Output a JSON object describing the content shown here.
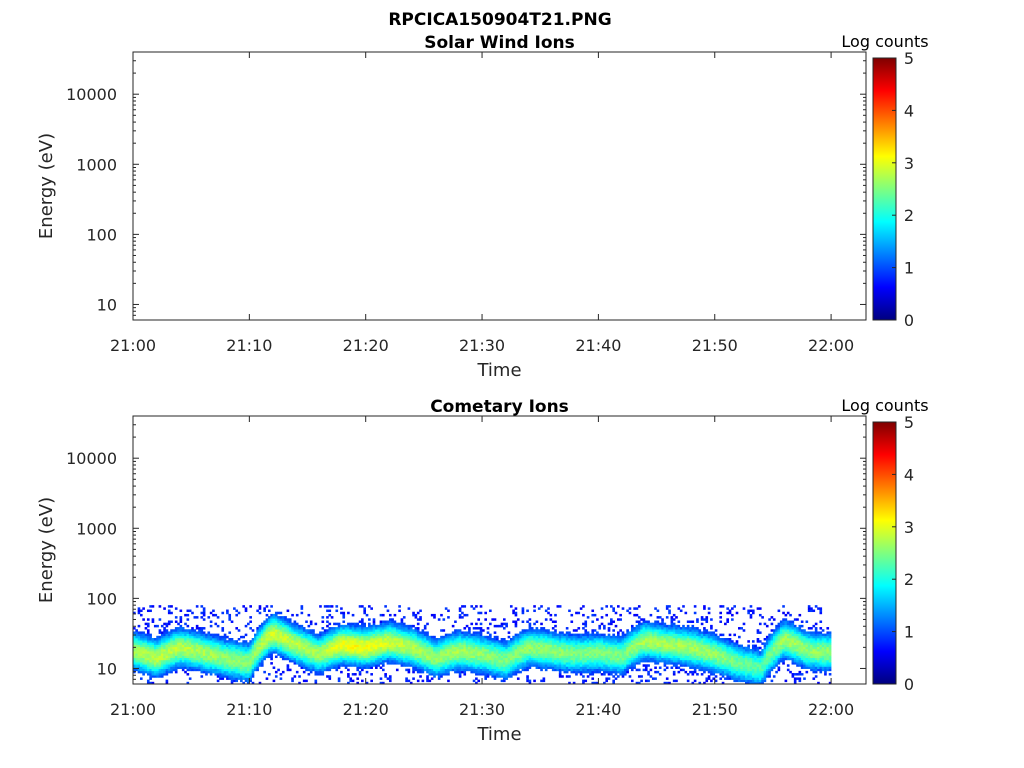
{
  "figure": {
    "suptitle": "RPCICA150904T21.PNG"
  },
  "colormap_stops": [
    "#00007f",
    "#0000ff",
    "#007fff",
    "#00ffff",
    "#7fff7f",
    "#ffff00",
    "#ff7f00",
    "#ff0000",
    "#7f0000"
  ],
  "chart_data": [
    {
      "type": "heatmap",
      "title": "Solar Wind Ions",
      "xlabel": "Time",
      "ylabel": "Energy (eV)",
      "x_ticks": [
        "21:00",
        "21:10",
        "21:20",
        "21:30",
        "21:40",
        "21:50",
        "22:00"
      ],
      "x_range": [
        "21:00",
        "22:03"
      ],
      "y_scale": "log",
      "y_ticks": [
        10,
        100,
        1000,
        10000
      ],
      "y_tick_labels": [
        "10",
        "100",
        "1000",
        "10000"
      ],
      "y_range": [
        6,
        40000
      ],
      "colorbar": {
        "label": "Log counts",
        "range": [
          0,
          5
        ],
        "ticks": [
          "0",
          "1",
          "2",
          "3",
          "4",
          "5"
        ]
      },
      "signal": []
    },
    {
      "type": "heatmap",
      "title": "Cometary Ions",
      "xlabel": "Time",
      "ylabel": "Energy (eV)",
      "x_ticks": [
        "21:00",
        "21:10",
        "21:20",
        "21:30",
        "21:40",
        "21:50",
        "22:00"
      ],
      "x_range": [
        "21:00",
        "22:03"
      ],
      "y_scale": "log",
      "y_ticks": [
        10,
        100,
        1000,
        10000
      ],
      "y_tick_labels": [
        "10",
        "100",
        "1000",
        "10000"
      ],
      "y_range": [
        6,
        40000
      ],
      "colorbar": {
        "label": "Log counts",
        "range": [
          0,
          5
        ],
        "ticks": [
          "0",
          "1",
          "2",
          "3",
          "4",
          "5"
        ]
      },
      "data_end": "22:00",
      "signal": [
        {
          "time": "21:00",
          "peak_energy_ev": 18,
          "peak_log_counts": 2.7,
          "noise_upper_energy_ev": 80
        },
        {
          "time": "21:02",
          "peak_energy_ev": 14,
          "peak_log_counts": 2.8,
          "noise_upper_energy_ev": 80
        },
        {
          "time": "21:04",
          "peak_energy_ev": 20,
          "peak_log_counts": 2.8,
          "noise_upper_energy_ev": 80
        },
        {
          "time": "21:06",
          "peak_energy_ev": 17,
          "peak_log_counts": 2.7,
          "noise_upper_energy_ev": 80
        },
        {
          "time": "21:08",
          "peak_energy_ev": 14,
          "peak_log_counts": 2.6,
          "noise_upper_energy_ev": 80
        },
        {
          "time": "21:10",
          "peak_energy_ev": 12,
          "peak_log_counts": 2.6,
          "noise_upper_energy_ev": 80
        },
        {
          "time": "21:12",
          "peak_energy_ev": 32,
          "peak_log_counts": 2.9,
          "noise_upper_energy_ev": 80
        },
        {
          "time": "21:14",
          "peak_energy_ev": 22,
          "peak_log_counts": 2.8,
          "noise_upper_energy_ev": 80
        },
        {
          "time": "21:16",
          "peak_energy_ev": 16,
          "peak_log_counts": 2.7,
          "noise_upper_energy_ev": 80
        },
        {
          "time": "21:18",
          "peak_energy_ev": 22,
          "peak_log_counts": 3.1,
          "noise_upper_energy_ev": 80
        },
        {
          "time": "21:20",
          "peak_energy_ev": 20,
          "peak_log_counts": 3.1,
          "noise_upper_energy_ev": 80
        },
        {
          "time": "21:22",
          "peak_energy_ev": 24,
          "peak_log_counts": 2.9,
          "noise_upper_energy_ev": 80
        },
        {
          "time": "21:24",
          "peak_energy_ev": 20,
          "peak_log_counts": 2.8,
          "noise_upper_energy_ev": 80
        },
        {
          "time": "21:26",
          "peak_energy_ev": 14,
          "peak_log_counts": 2.6,
          "noise_upper_energy_ev": 80
        },
        {
          "time": "21:28",
          "peak_energy_ev": 18,
          "peak_log_counts": 2.7,
          "noise_upper_energy_ev": 80
        },
        {
          "time": "21:30",
          "peak_energy_ev": 16,
          "peak_log_counts": 2.6,
          "noise_upper_energy_ev": 80
        },
        {
          "time": "21:32",
          "peak_energy_ev": 13,
          "peak_log_counts": 2.5,
          "noise_upper_energy_ev": 80
        },
        {
          "time": "21:34",
          "peak_energy_ev": 20,
          "peak_log_counts": 2.6,
          "noise_upper_energy_ev": 80
        },
        {
          "time": "21:36",
          "peak_energy_ev": 18,
          "peak_log_counts": 2.6,
          "noise_upper_energy_ev": 80
        },
        {
          "time": "21:38",
          "peak_energy_ev": 16,
          "peak_log_counts": 2.5,
          "noise_upper_energy_ev": 80
        },
        {
          "time": "21:40",
          "peak_energy_ev": 17,
          "peak_log_counts": 2.5,
          "noise_upper_energy_ev": 80
        },
        {
          "time": "21:42",
          "peak_energy_ev": 15,
          "peak_log_counts": 2.5,
          "noise_upper_energy_ev": 80
        },
        {
          "time": "21:44",
          "peak_energy_ev": 25,
          "peak_log_counts": 2.7,
          "noise_upper_energy_ev": 80
        },
        {
          "time": "21:46",
          "peak_energy_ev": 22,
          "peak_log_counts": 2.7,
          "noise_upper_energy_ev": 80
        },
        {
          "time": "21:48",
          "peak_energy_ev": 20,
          "peak_log_counts": 2.7,
          "noise_upper_energy_ev": 80
        },
        {
          "time": "21:50",
          "peak_energy_ev": 16,
          "peak_log_counts": 2.6,
          "noise_upper_energy_ev": 80
        },
        {
          "time": "21:52",
          "peak_energy_ev": 12,
          "peak_log_counts": 2.4,
          "noise_upper_energy_ev": 80
        },
        {
          "time": "21:54",
          "peak_energy_ev": 10,
          "peak_log_counts": 2.3,
          "noise_upper_energy_ev": 80
        },
        {
          "time": "21:56",
          "peak_energy_ev": 26,
          "peak_log_counts": 2.7,
          "noise_upper_energy_ev": 80
        },
        {
          "time": "21:58",
          "peak_energy_ev": 18,
          "peak_log_counts": 2.6,
          "noise_upper_energy_ev": 80
        },
        {
          "time": "22:00",
          "peak_energy_ev": 17,
          "peak_log_counts": 2.6,
          "noise_upper_energy_ev": 80
        }
      ]
    }
  ]
}
